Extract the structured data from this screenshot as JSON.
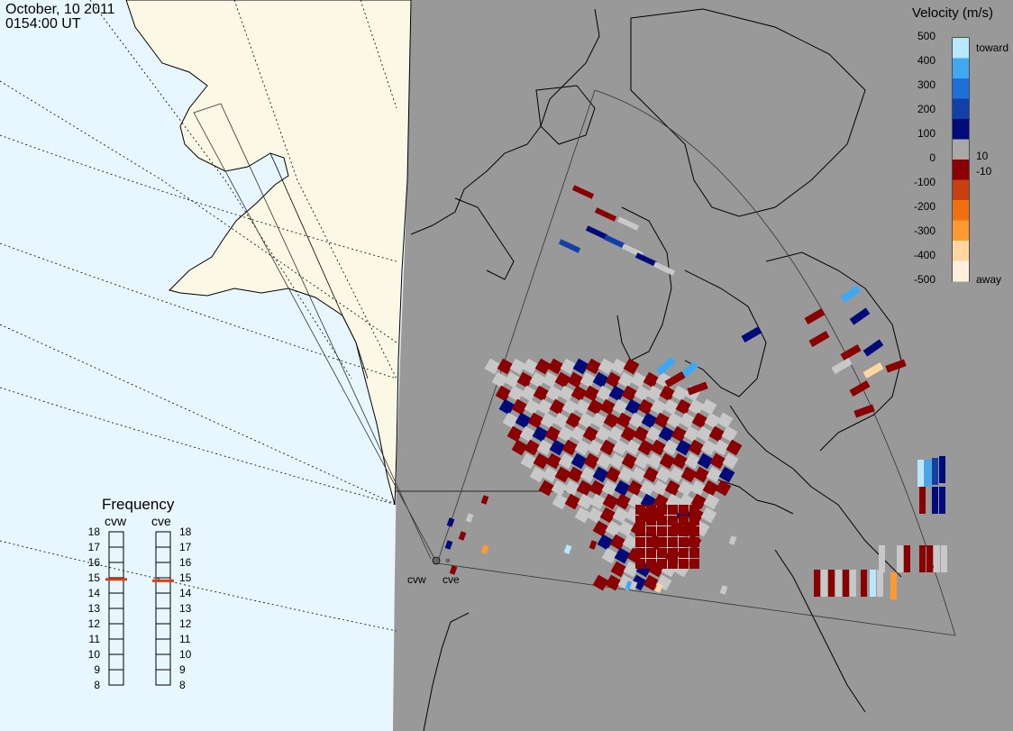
{
  "header": {
    "date": "October, 10 2011",
    "time": "0154:00 UT"
  },
  "colorbar": {
    "title": "Velocity (m/s)",
    "ticks": [
      "500",
      "400",
      "300",
      "200",
      "100",
      "0",
      "-100",
      "-200",
      "-300",
      "-400",
      "-500"
    ],
    "side_labels": [
      "toward",
      "10",
      "-10",
      "away"
    ],
    "colors": [
      "#fff0dc",
      "#ffd6a0",
      "#ff9a30",
      "#f07010",
      "#c84010",
      "#8a0000",
      "#a8a8a8",
      "#000a78",
      "#1040a8",
      "#1e70d8",
      "#40a8f0",
      "#b8e8ff"
    ]
  },
  "frequency": {
    "title": "Frequency",
    "radars": [
      {
        "name": "cvw",
        "value_mhz": 14.9
      },
      {
        "name": "cve",
        "value_mhz": 14.8
      }
    ],
    "scale": [
      "18",
      "17",
      "16",
      "15",
      "14",
      "13",
      "12",
      "11",
      "10",
      "9",
      "8"
    ]
  },
  "sites": [
    "cvw",
    "cve"
  ],
  "map": {
    "ocean_color": "#e8f6ff",
    "land_color": "#fbf8e6",
    "nodata_color": "#999999",
    "ground_scatter_color": "#c8c8c8"
  }
}
